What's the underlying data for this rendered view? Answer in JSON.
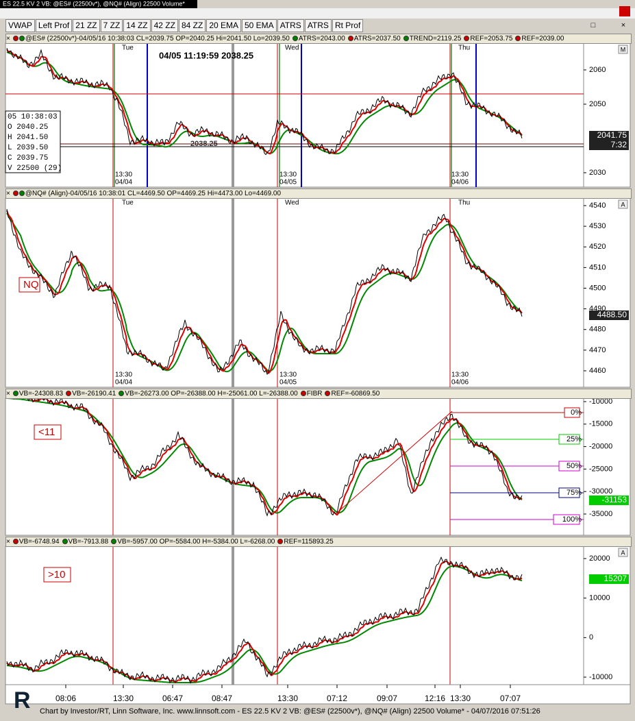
{
  "window": {
    "title": "ES 22.5 KV 2 VB: @ES# (22500v*), @NQ# (Align) 22500 Volume*"
  },
  "toolbar": [
    "VWAP",
    "Left Prof",
    "21 ZZ",
    "7 ZZ",
    "14 ZZ",
    "42 ZZ",
    "84 ZZ",
    "20 EMA",
    "50 EMA",
    "ATRS",
    "ATRS",
    "Rt Prof"
  ],
  "panels": [
    {
      "header": [
        {
          "dots": [
            "#cc0000",
            "#008000"
          ],
          "text": "@ES# (22500v*)-04/05/16 10:38:03 CL=2039.75 OP=2040.25 Hi=2041.50 Lo=2039.50"
        },
        {
          "dots": [
            "#008000"
          ],
          "text": "ATRS=2043.00"
        },
        {
          "dots": [
            "#cc0000"
          ],
          "text": "ATRS=2037.50"
        },
        {
          "dots": [
            "#008000"
          ],
          "text": "TREND=2119.25"
        },
        {
          "dots": [
            "#cc0000"
          ],
          "text": "REF=2053.75"
        },
        {
          "dots": [
            "#cc0000"
          ],
          "text": "REF=2039.00"
        }
      ],
      "scale_letter": "M",
      "yticks": [
        2060,
        2050,
        2030
      ],
      "last_labels": [
        "2041.75",
        "7:32"
      ],
      "overlay": "04/05 11:19:59  2038.25",
      "inline_label": "2038.25",
      "days": [
        "Tue",
        "Wed",
        "Thu"
      ],
      "stamps": [
        [
          "13:30",
          "04/04"
        ],
        [
          "13:30",
          "04/05"
        ],
        [
          "13:30",
          "04/06"
        ]
      ],
      "data_box": [
        "05 10:38:03",
        "O  2040.25",
        "H  2041.50",
        "L  2039.50",
        "C  2039.75",
        "V 22500  (29)"
      ]
    },
    {
      "header": [
        {
          "dots": [
            "#cc0000",
            "#008000"
          ],
          "text": "@NQ# (Align)-04/05/16 10:38:01 CL=4469.50 OP=4469.25 Hi=4473.00 Lo=4469.00"
        }
      ],
      "scale_letter": "A",
      "yticks": [
        4540,
        4530,
        4520,
        4510,
        4500,
        4490,
        4480,
        4470,
        4460
      ],
      "last_labels": [
        "4488.50"
      ],
      "tag": "NQ",
      "days": [
        "Tue",
        "Wed",
        "Thu"
      ],
      "stamps": [
        [
          "13:30",
          "04/04"
        ],
        [
          "13:30",
          "04/05"
        ],
        [
          "13:30",
          "04/06"
        ]
      ]
    },
    {
      "header": [
        {
          "dots": [
            "#008000"
          ],
          "text": "VB=-24308.83"
        },
        {
          "dots": [
            "#cc0000"
          ],
          "text": "VB=-26190.41"
        },
        {
          "dots": [
            "#008000"
          ],
          "text": "VB=-26273.00 OP=-26388.00 H=-25061.00 L=-26388.00"
        },
        {
          "dots": [
            "#cc0000"
          ],
          "text": "FIBR"
        },
        {
          "dots": [
            "#cc0000"
          ],
          "text": "REF=-60869.50"
        }
      ],
      "yticks": [
        -10000,
        -15000,
        -20000,
        -25000,
        -30000,
        -35000
      ],
      "last_labels": [
        "-31153"
      ],
      "tag": "<11",
      "fib": [
        {
          "label": "0%",
          "color": "#cc0000"
        },
        {
          "label": "25%",
          "color": "#00cc00"
        },
        {
          "label": "50%",
          "color": "#cc00cc"
        },
        {
          "label": "75%",
          "color": "#000080"
        },
        {
          "label": "100%",
          "color": "#cc00cc"
        }
      ]
    },
    {
      "header": [
        {
          "dots": [
            "#cc0000"
          ],
          "text": "VB=-6748.94"
        },
        {
          "dots": [
            "#008000"
          ],
          "text": "VB=-7913.88"
        },
        {
          "dots": [
            "#008000"
          ],
          "text": "VB=-5957.00 OP=-5584.00 H=-5384.00 L=-6268.00"
        },
        {
          "dots": [
            "#cc0000"
          ],
          "text": "REF=115893.25"
        }
      ],
      "scale_letter": "A",
      "yticks": [
        20000,
        10000,
        0,
        -10000
      ],
      "last_labels": [
        "15207"
      ],
      "tag": ">10"
    }
  ],
  "x_axis": [
    "08:06",
    "13:30",
    "06:47",
    "08:47",
    "13:30",
    "07:12",
    "09:07",
    "12:16",
    "13:30",
    "07:07"
  ],
  "footer": "Chart by Investor/RT, Linn Software, Inc. www.linnsoft.com - ES 22.5 KV 2 VB: @ES# (22500v*), @NQ# (Align) 22500 Volume* - 04/07/2016 07:51:26"
}
